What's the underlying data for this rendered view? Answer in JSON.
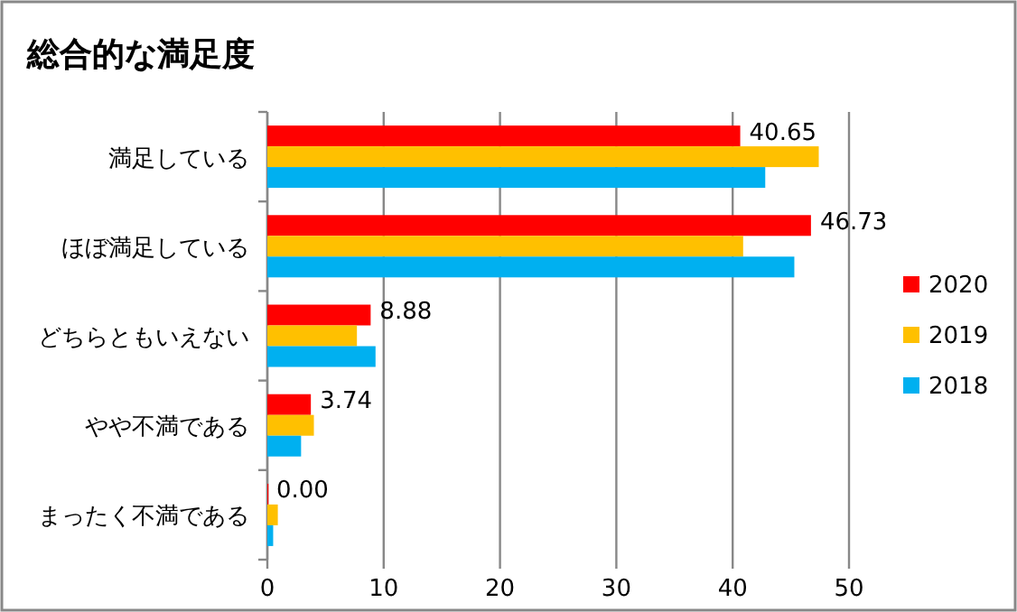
{
  "chart_data": {
    "type": "bar",
    "orientation": "horizontal",
    "title": "総合的な満足度",
    "categories": [
      "満足している",
      "ほぼ満足している",
      "どちらともいえない",
      "やや不満である",
      "まったく不満である"
    ],
    "series": [
      {
        "name": "2020",
        "color": "#ff0000",
        "values": [
          40.65,
          46.73,
          8.88,
          3.74,
          0.0
        ],
        "value_labels": [
          "40.65",
          "46.73",
          "8.88",
          "3.74",
          "0.00"
        ]
      },
      {
        "name": "2019",
        "color": "#ffc000",
        "values": [
          47.4,
          40.9,
          7.7,
          4.0,
          0.9
        ]
      },
      {
        "name": "2018",
        "color": "#00b0f0",
        "values": [
          42.8,
          45.3,
          9.3,
          2.9,
          0.5
        ]
      }
    ],
    "xlim": [
      0,
      50
    ],
    "xticks": [
      0,
      10,
      20,
      30,
      40,
      50
    ],
    "grid": "x",
    "legend": "right"
  }
}
